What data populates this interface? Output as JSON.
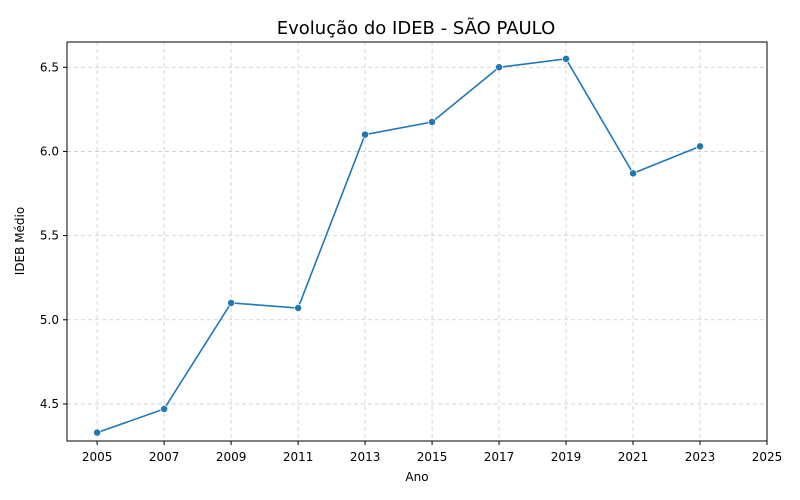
{
  "chart_data": {
    "type": "line",
    "title": "Evolução do IDEB - SÃO PAULO",
    "xlabel": "Ano",
    "ylabel": "IDEB Médio",
    "x_ticks": [
      2005,
      2007,
      2009,
      2011,
      2013,
      2015,
      2017,
      2019,
      2021,
      2023,
      2025
    ],
    "y_ticks": [
      "4.5",
      "5.0",
      "5.5",
      "6.0",
      "6.5"
    ],
    "xlim": [
      2004.1,
      2025
    ],
    "ylim": [
      4.28,
      6.65
    ],
    "grid": true,
    "line_color": "#1f77b4",
    "series": [
      {
        "x": [
          2005,
          2007,
          2009,
          2011,
          2013,
          2015,
          2017,
          2019,
          2021,
          2023
        ],
        "values": [
          4.33,
          4.47,
          5.1,
          5.07,
          6.1,
          6.175,
          6.5,
          6.55,
          5.87,
          6.03
        ]
      }
    ]
  }
}
